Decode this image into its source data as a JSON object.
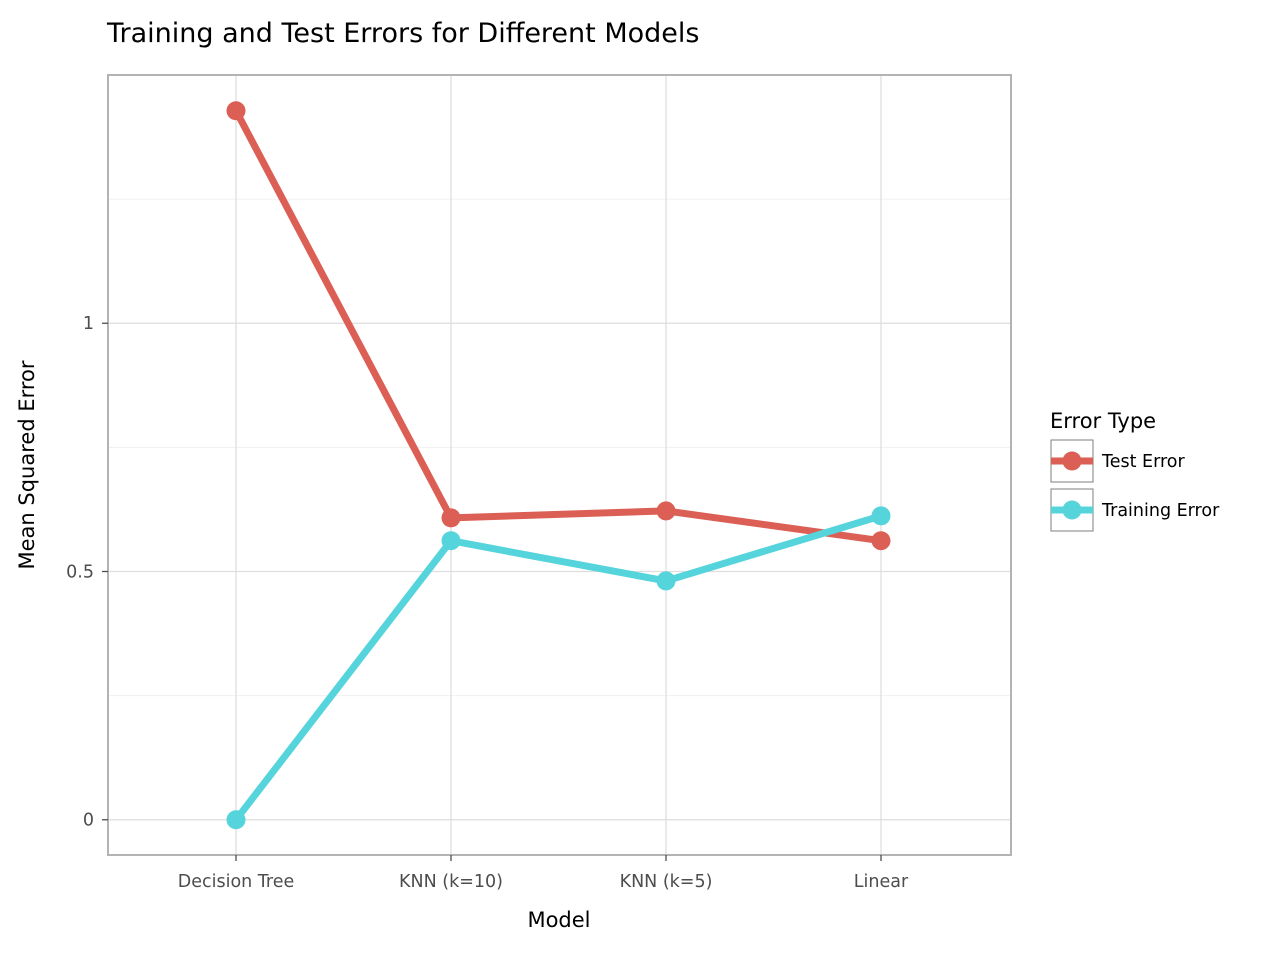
{
  "chart_data": {
    "type": "line",
    "title": "Training and Test Errors for Different Models",
    "xlabel": "Model",
    "ylabel": "Mean Squared Error",
    "categories": [
      "Decision Tree",
      "KNN (k=10)",
      "KNN (k=5)",
      "Linear"
    ],
    "y_ticks": [
      0,
      0.5,
      1
    ],
    "y_tick_labels": [
      "0",
      "0.5",
      "1"
    ],
    "ylim": [
      -0.071,
      1.5
    ],
    "grid": true,
    "legend": {
      "title": "Error Type",
      "position": "right"
    },
    "series": [
      {
        "name": "Test Error",
        "color": "#dc5f55",
        "values": [
          1.428,
          0.608,
          0.622,
          0.562
        ]
      },
      {
        "name": "Training Error",
        "color": "#55d4dc",
        "values": [
          0.0,
          0.562,
          0.481,
          0.612
        ]
      }
    ]
  }
}
